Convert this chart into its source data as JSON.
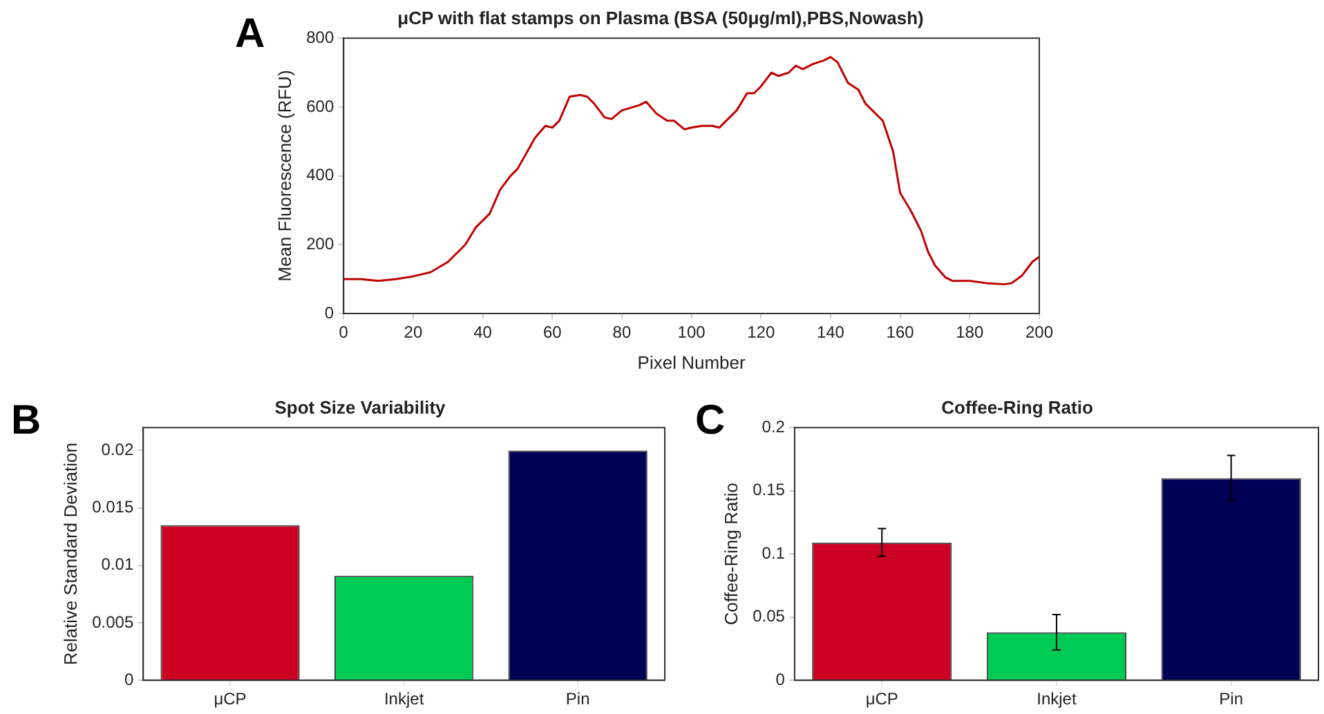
{
  "chart_data": [
    {
      "type": "line",
      "title": "μCP with flat stamps on Plasma (BSA (50μg/ml),PBS,Nowash)",
      "xlabel": "Pixel Number",
      "ylabel": "Mean Fluorescence (RFU)",
      "annotations": [
        "A"
      ],
      "x": [
        0,
        5,
        10,
        15,
        20,
        25,
        30,
        35,
        38,
        42,
        45,
        48,
        50,
        55,
        58,
        60,
        62,
        65,
        68,
        70,
        72,
        75,
        77,
        80,
        85,
        87,
        90,
        93,
        95,
        98,
        100,
        103,
        106,
        108,
        110,
        113,
        116,
        118,
        120,
        123,
        125,
        128,
        130,
        132,
        135,
        138,
        140,
        142,
        145,
        148,
        150,
        155,
        158,
        160,
        163,
        166,
        168,
        170,
        173,
        175,
        180,
        185,
        190,
        192,
        195,
        198,
        200
      ],
      "series": [
        {
          "color": "#c00000",
          "values": [
            100,
            100,
            95,
            100,
            108,
            120,
            150,
            200,
            250,
            290,
            360,
            400,
            420,
            510,
            545,
            540,
            560,
            630,
            635,
            630,
            610,
            570,
            565,
            590,
            605,
            615,
            580,
            560,
            560,
            535,
            540,
            545,
            545,
            540,
            560,
            590,
            640,
            640,
            660,
            700,
            690,
            700,
            720,
            710,
            725,
            735,
            745,
            730,
            670,
            650,
            610,
            560,
            470,
            350,
            300,
            240,
            180,
            140,
            105,
            95,
            95,
            88,
            85,
            88,
            110,
            150,
            165
          ]
        }
      ],
      "xlim": [
        0,
        200
      ],
      "xticks": [
        0,
        20,
        40,
        60,
        80,
        100,
        120,
        140,
        160,
        180,
        200
      ],
      "ylim": [
        0,
        800
      ],
      "yticks": [
        0,
        200,
        400,
        600,
        800
      ],
      "grid": false,
      "legend": false,
      "marker": "none",
      "line_style": "solid"
    },
    {
      "type": "bar",
      "title": "Spot Size Variability",
      "ylabel": "Relative Standard Deviation",
      "annotations": [
        "B"
      ],
      "categories": [
        "μCP",
        "Inkjet",
        "Pin"
      ],
      "values": [
        0.0135,
        0.0091,
        0.02
      ],
      "colors": [
        "#cc0022",
        "#00cc55",
        "#000055"
      ],
      "ylim": [
        0,
        0.022
      ],
      "yticks": [
        0,
        0.005,
        0.01,
        0.015,
        0.02
      ],
      "grid": false,
      "legend": false
    },
    {
      "type": "bar",
      "title": "Coffee-Ring Ratio",
      "ylabel": "Coffee-Ring Ratio",
      "annotations": [
        "C"
      ],
      "categories": [
        "μCP",
        "Inkjet",
        "Pin"
      ],
      "values": [
        0.109,
        0.038,
        0.16
      ],
      "errors": [
        0.011,
        0.014,
        0.018
      ],
      "colors": [
        "#cc0022",
        "#00cc55",
        "#000055"
      ],
      "ylim": [
        0,
        0.2
      ],
      "yticks": [
        0,
        0.05,
        0.1,
        0.15,
        0.2
      ],
      "grid": false,
      "legend": false
    }
  ]
}
